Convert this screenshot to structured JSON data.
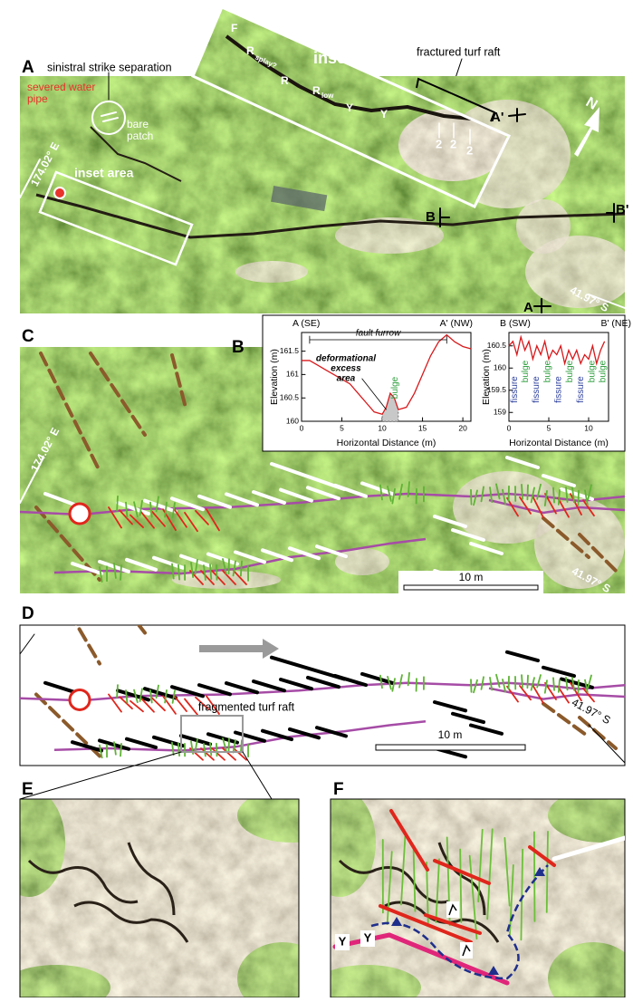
{
  "panel_labels": [
    "A",
    "B",
    "C",
    "D",
    "E",
    "F"
  ],
  "panel_a": {
    "strike_note": "sinistral strike separation",
    "pipe_lines": [
      "severed water",
      "pipe"
    ],
    "bare_lines": [
      "bare",
      "patch"
    ],
    "inset_title": "inset",
    "fault_labels": [
      "F",
      "R",
      "R",
      "R",
      "Y",
      "Y"
    ],
    "fault_subscripts": [
      "splay?",
      "low"
    ],
    "slip_labels": [
      "2",
      "2",
      "2"
    ],
    "raft": "fractured turf raft",
    "inset_area": "inset area",
    "lon": "174.02° E",
    "lat": "41.97° S",
    "profile_ends": [
      "A'",
      "A",
      "B",
      "B'"
    ],
    "north": "N"
  },
  "panel_c": {
    "lon": "174.02° E",
    "lat": "41.97° S",
    "scale": "10 m"
  },
  "panel_d": {
    "raft": "fragmented turf raft",
    "scale": "10 m",
    "lat": "41.97° S"
  },
  "panel_f": {
    "y_labels": [
      "Y",
      "Y"
    ]
  },
  "chart_data": [
    {
      "type": "line",
      "left_label": "A (SE)",
      "right_label": "A' (NW)",
      "y_label": "Elevation (m)",
      "x_label": "Horizontal Distance (m)",
      "span_label": "fault furrow",
      "area_label": [
        "deformational",
        "excess",
        "area"
      ],
      "feature_label": "bulge",
      "feature_color": "#2e9e3e",
      "color": "#d7191c",
      "x": [
        0,
        1,
        2,
        3,
        4,
        5,
        6,
        7,
        8,
        9,
        10,
        10.5,
        11,
        11.5,
        12,
        13,
        14,
        15,
        16,
        17,
        18,
        19,
        20,
        21
      ],
      "values": [
        161.3,
        161.3,
        161.2,
        161.1,
        161.0,
        160.9,
        160.8,
        160.6,
        160.4,
        160.2,
        160.15,
        160.3,
        160.6,
        160.5,
        160.25,
        160.3,
        160.6,
        161.0,
        161.4,
        161.7,
        161.85,
        161.7,
        161.6,
        161.55
      ],
      "xlim": [
        0,
        21
      ],
      "ylim": [
        160,
        161.9
      ],
      "xticks": [
        0,
        5,
        10,
        15,
        20
      ],
      "yticks": [
        160,
        160.5,
        161,
        161.5
      ]
    },
    {
      "type": "line",
      "left_label": "B (SW)",
      "right_label": "B' (NE)",
      "y_label": "Elevation (m)",
      "x_label": "Horizontal Distance (m)",
      "color": "#d7191c",
      "annotations": [
        {
          "text": "fissure",
          "color": "#2b3f9e"
        },
        {
          "text": "bulge",
          "color": "#2e9e3e"
        },
        {
          "text": "fissure",
          "color": "#2b3f9e"
        },
        {
          "text": "bulge",
          "color": "#2e9e3e"
        },
        {
          "text": "fissure",
          "color": "#2b3f9e"
        },
        {
          "text": "bulge",
          "color": "#2e9e3e"
        },
        {
          "text": "fissure",
          "color": "#2b3f9e"
        },
        {
          "text": "bulge",
          "color": "#2e9e3e"
        },
        {
          "text": "bulge",
          "color": "#2e9e3e"
        }
      ],
      "x": [
        0,
        0.5,
        1,
        1.5,
        2,
        2.5,
        3,
        3.5,
        4,
        4.5,
        5,
        5.5,
        6,
        6.5,
        7,
        7.5,
        8,
        8.5,
        9,
        9.5,
        10,
        10.5,
        11,
        11.5,
        12
      ],
      "values": [
        160.5,
        160.6,
        160.3,
        160.7,
        160.4,
        160.6,
        160.2,
        160.5,
        160.3,
        160.6,
        160.2,
        160.4,
        160.3,
        160.5,
        160.1,
        160.4,
        160.2,
        160.4,
        160.1,
        160.3,
        160.2,
        160.5,
        160.1,
        160.4,
        160.6
      ],
      "xlim": [
        0,
        12.5
      ],
      "ylim": [
        158.8,
        160.8
      ],
      "xticks": [
        0,
        5,
        10
      ],
      "yticks": [
        159,
        159.5,
        160,
        160.5
      ]
    }
  ]
}
